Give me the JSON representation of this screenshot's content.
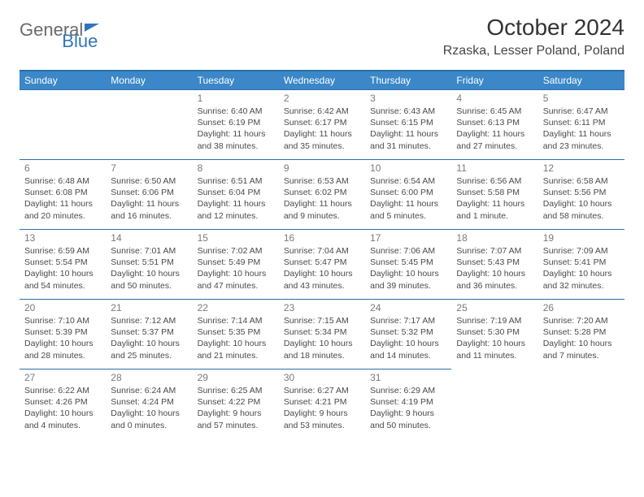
{
  "logo": {
    "text1": "General",
    "text2": "Blue"
  },
  "title": "October 2024",
  "location": "Rzaska, Lesser Poland, Poland",
  "colors": {
    "header_bg": "#3b87c8",
    "header_text": "#ffffff",
    "border": "#2a6fa8",
    "brand_blue": "#2f76b8",
    "text_gray": "#6a6a6a"
  },
  "weekdays": [
    "Sunday",
    "Monday",
    "Tuesday",
    "Wednesday",
    "Thursday",
    "Friday",
    "Saturday"
  ],
  "weeks": [
    [
      null,
      null,
      {
        "d": "1",
        "sr": "Sunrise: 6:40 AM",
        "ss": "Sunset: 6:19 PM",
        "dl1": "Daylight: 11 hours",
        "dl2": "and 38 minutes."
      },
      {
        "d": "2",
        "sr": "Sunrise: 6:42 AM",
        "ss": "Sunset: 6:17 PM",
        "dl1": "Daylight: 11 hours",
        "dl2": "and 35 minutes."
      },
      {
        "d": "3",
        "sr": "Sunrise: 6:43 AM",
        "ss": "Sunset: 6:15 PM",
        "dl1": "Daylight: 11 hours",
        "dl2": "and 31 minutes."
      },
      {
        "d": "4",
        "sr": "Sunrise: 6:45 AM",
        "ss": "Sunset: 6:13 PM",
        "dl1": "Daylight: 11 hours",
        "dl2": "and 27 minutes."
      },
      {
        "d": "5",
        "sr": "Sunrise: 6:47 AM",
        "ss": "Sunset: 6:11 PM",
        "dl1": "Daylight: 11 hours",
        "dl2": "and 23 minutes."
      }
    ],
    [
      {
        "d": "6",
        "sr": "Sunrise: 6:48 AM",
        "ss": "Sunset: 6:08 PM",
        "dl1": "Daylight: 11 hours",
        "dl2": "and 20 minutes."
      },
      {
        "d": "7",
        "sr": "Sunrise: 6:50 AM",
        "ss": "Sunset: 6:06 PM",
        "dl1": "Daylight: 11 hours",
        "dl2": "and 16 minutes."
      },
      {
        "d": "8",
        "sr": "Sunrise: 6:51 AM",
        "ss": "Sunset: 6:04 PM",
        "dl1": "Daylight: 11 hours",
        "dl2": "and 12 minutes."
      },
      {
        "d": "9",
        "sr": "Sunrise: 6:53 AM",
        "ss": "Sunset: 6:02 PM",
        "dl1": "Daylight: 11 hours",
        "dl2": "and 9 minutes."
      },
      {
        "d": "10",
        "sr": "Sunrise: 6:54 AM",
        "ss": "Sunset: 6:00 PM",
        "dl1": "Daylight: 11 hours",
        "dl2": "and 5 minutes."
      },
      {
        "d": "11",
        "sr": "Sunrise: 6:56 AM",
        "ss": "Sunset: 5:58 PM",
        "dl1": "Daylight: 11 hours",
        "dl2": "and 1 minute."
      },
      {
        "d": "12",
        "sr": "Sunrise: 6:58 AM",
        "ss": "Sunset: 5:56 PM",
        "dl1": "Daylight: 10 hours",
        "dl2": "and 58 minutes."
      }
    ],
    [
      {
        "d": "13",
        "sr": "Sunrise: 6:59 AM",
        "ss": "Sunset: 5:54 PM",
        "dl1": "Daylight: 10 hours",
        "dl2": "and 54 minutes."
      },
      {
        "d": "14",
        "sr": "Sunrise: 7:01 AM",
        "ss": "Sunset: 5:51 PM",
        "dl1": "Daylight: 10 hours",
        "dl2": "and 50 minutes."
      },
      {
        "d": "15",
        "sr": "Sunrise: 7:02 AM",
        "ss": "Sunset: 5:49 PM",
        "dl1": "Daylight: 10 hours",
        "dl2": "and 47 minutes."
      },
      {
        "d": "16",
        "sr": "Sunrise: 7:04 AM",
        "ss": "Sunset: 5:47 PM",
        "dl1": "Daylight: 10 hours",
        "dl2": "and 43 minutes."
      },
      {
        "d": "17",
        "sr": "Sunrise: 7:06 AM",
        "ss": "Sunset: 5:45 PM",
        "dl1": "Daylight: 10 hours",
        "dl2": "and 39 minutes."
      },
      {
        "d": "18",
        "sr": "Sunrise: 7:07 AM",
        "ss": "Sunset: 5:43 PM",
        "dl1": "Daylight: 10 hours",
        "dl2": "and 36 minutes."
      },
      {
        "d": "19",
        "sr": "Sunrise: 7:09 AM",
        "ss": "Sunset: 5:41 PM",
        "dl1": "Daylight: 10 hours",
        "dl2": "and 32 minutes."
      }
    ],
    [
      {
        "d": "20",
        "sr": "Sunrise: 7:10 AM",
        "ss": "Sunset: 5:39 PM",
        "dl1": "Daylight: 10 hours",
        "dl2": "and 28 minutes."
      },
      {
        "d": "21",
        "sr": "Sunrise: 7:12 AM",
        "ss": "Sunset: 5:37 PM",
        "dl1": "Daylight: 10 hours",
        "dl2": "and 25 minutes."
      },
      {
        "d": "22",
        "sr": "Sunrise: 7:14 AM",
        "ss": "Sunset: 5:35 PM",
        "dl1": "Daylight: 10 hours",
        "dl2": "and 21 minutes."
      },
      {
        "d": "23",
        "sr": "Sunrise: 7:15 AM",
        "ss": "Sunset: 5:34 PM",
        "dl1": "Daylight: 10 hours",
        "dl2": "and 18 minutes."
      },
      {
        "d": "24",
        "sr": "Sunrise: 7:17 AM",
        "ss": "Sunset: 5:32 PM",
        "dl1": "Daylight: 10 hours",
        "dl2": "and 14 minutes."
      },
      {
        "d": "25",
        "sr": "Sunrise: 7:19 AM",
        "ss": "Sunset: 5:30 PM",
        "dl1": "Daylight: 10 hours",
        "dl2": "and 11 minutes."
      },
      {
        "d": "26",
        "sr": "Sunrise: 7:20 AM",
        "ss": "Sunset: 5:28 PM",
        "dl1": "Daylight: 10 hours",
        "dl2": "and 7 minutes."
      }
    ],
    [
      {
        "d": "27",
        "sr": "Sunrise: 6:22 AM",
        "ss": "Sunset: 4:26 PM",
        "dl1": "Daylight: 10 hours",
        "dl2": "and 4 minutes."
      },
      {
        "d": "28",
        "sr": "Sunrise: 6:24 AM",
        "ss": "Sunset: 4:24 PM",
        "dl1": "Daylight: 10 hours",
        "dl2": "and 0 minutes."
      },
      {
        "d": "29",
        "sr": "Sunrise: 6:25 AM",
        "ss": "Sunset: 4:22 PM",
        "dl1": "Daylight: 9 hours",
        "dl2": "and 57 minutes."
      },
      {
        "d": "30",
        "sr": "Sunrise: 6:27 AM",
        "ss": "Sunset: 4:21 PM",
        "dl1": "Daylight: 9 hours",
        "dl2": "and 53 minutes."
      },
      {
        "d": "31",
        "sr": "Sunrise: 6:29 AM",
        "ss": "Sunset: 4:19 PM",
        "dl1": "Daylight: 9 hours",
        "dl2": "and 50 minutes."
      },
      null,
      null
    ]
  ]
}
